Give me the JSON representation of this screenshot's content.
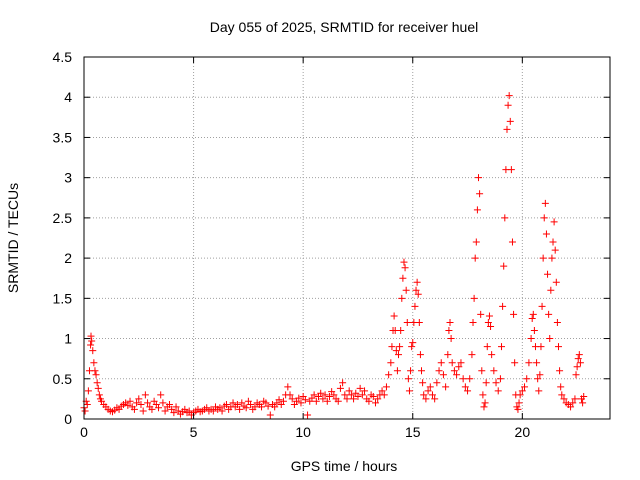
{
  "chart_data": {
    "type": "scatter",
    "title": "Day 055 of 2025, SRMTID for receiver huel",
    "xlabel": "GPS time / hours",
    "ylabel": "SRMTID / TECUs",
    "xlim": [
      0,
      24
    ],
    "ylim": [
      0,
      4.5
    ],
    "xticks": [
      0,
      5,
      10,
      15,
      20
    ],
    "xtick_labels": [
      "0",
      "5",
      "10",
      "15",
      "20"
    ],
    "yticks": [
      0,
      0.5,
      1,
      1.5,
      2,
      2.5,
      3,
      3.5,
      4,
      4.5
    ],
    "ytick_labels": [
      "0",
      "0.5",
      "1",
      "1.5",
      "2",
      "2.5",
      "3",
      "3.5",
      "4",
      "4.5"
    ],
    "grid": true,
    "marker": "+",
    "color": "#ff0000",
    "series": [
      {
        "name": "SRMTID",
        "points": [
          [
            0.0,
            0.14
          ],
          [
            0.05,
            0.1
          ],
          [
            0.1,
            0.22
          ],
          [
            0.15,
            0.18
          ],
          [
            0.2,
            0.35
          ],
          [
            0.25,
            0.6
          ],
          [
            0.3,
            0.92
          ],
          [
            0.32,
            1.03
          ],
          [
            0.35,
            0.97
          ],
          [
            0.4,
            0.85
          ],
          [
            0.45,
            0.7
          ],
          [
            0.5,
            0.6
          ],
          [
            0.55,
            0.55
          ],
          [
            0.6,
            0.45
          ],
          [
            0.65,
            0.38
          ],
          [
            0.7,
            0.3
          ],
          [
            0.75,
            0.25
          ],
          [
            0.8,
            0.22
          ],
          [
            0.9,
            0.18
          ],
          [
            1.0,
            0.15
          ],
          [
            1.1,
            0.12
          ],
          [
            1.2,
            0.1
          ],
          [
            1.3,
            0.09
          ],
          [
            1.4,
            0.11
          ],
          [
            1.5,
            0.14
          ],
          [
            1.6,
            0.12
          ],
          [
            1.7,
            0.16
          ],
          [
            1.8,
            0.18
          ],
          [
            1.9,
            0.2
          ],
          [
            2.0,
            0.17
          ],
          [
            2.1,
            0.22
          ],
          [
            2.2,
            0.15
          ],
          [
            2.3,
            0.12
          ],
          [
            2.4,
            0.2
          ],
          [
            2.5,
            0.25
          ],
          [
            2.6,
            0.18
          ],
          [
            2.7,
            0.1
          ],
          [
            2.8,
            0.3
          ],
          [
            2.9,
            0.2
          ],
          [
            3.0,
            0.15
          ],
          [
            3.1,
            0.12
          ],
          [
            3.2,
            0.22
          ],
          [
            3.3,
            0.18
          ],
          [
            3.4,
            0.14
          ],
          [
            3.5,
            0.3
          ],
          [
            3.6,
            0.2
          ],
          [
            3.7,
            0.1
          ],
          [
            3.8,
            0.15
          ],
          [
            3.9,
            0.18
          ],
          [
            4.0,
            0.12
          ],
          [
            4.1,
            0.08
          ],
          [
            4.2,
            0.15
          ],
          [
            4.3,
            0.1
          ],
          [
            4.4,
            0.06
          ],
          [
            4.5,
            0.09
          ],
          [
            4.6,
            0.12
          ],
          [
            4.7,
            0.08
          ],
          [
            4.8,
            0.1
          ],
          [
            4.9,
            0.05
          ],
          [
            5.0,
            0.08
          ],
          [
            5.1,
            0.1
          ],
          [
            5.2,
            0.12
          ],
          [
            5.3,
            0.09
          ],
          [
            5.4,
            0.1
          ],
          [
            5.5,
            0.12
          ],
          [
            5.6,
            0.14
          ],
          [
            5.7,
            0.1
          ],
          [
            5.8,
            0.12
          ],
          [
            5.9,
            0.1
          ],
          [
            6.0,
            0.15
          ],
          [
            6.1,
            0.12
          ],
          [
            6.2,
            0.14
          ],
          [
            6.3,
            0.1
          ],
          [
            6.4,
            0.16
          ],
          [
            6.5,
            0.18
          ],
          [
            6.6,
            0.12
          ],
          [
            6.7,
            0.15
          ],
          [
            6.8,
            0.2
          ],
          [
            6.9,
            0.15
          ],
          [
            7.0,
            0.18
          ],
          [
            7.1,
            0.12
          ],
          [
            7.2,
            0.2
          ],
          [
            7.3,
            0.16
          ],
          [
            7.4,
            0.14
          ],
          [
            7.5,
            0.22
          ],
          [
            7.6,
            0.18
          ],
          [
            7.7,
            0.12
          ],
          [
            7.8,
            0.15
          ],
          [
            7.9,
            0.2
          ],
          [
            8.0,
            0.18
          ],
          [
            8.1,
            0.15
          ],
          [
            8.2,
            0.22
          ],
          [
            8.3,
            0.2
          ],
          [
            8.4,
            0.16
          ],
          [
            8.5,
            0.05
          ],
          [
            8.6,
            0.18
          ],
          [
            8.7,
            0.15
          ],
          [
            8.8,
            0.2
          ],
          [
            8.9,
            0.24
          ],
          [
            9.0,
            0.18
          ],
          [
            9.1,
            0.22
          ],
          [
            9.2,
            0.3
          ],
          [
            9.3,
            0.4
          ],
          [
            9.4,
            0.3
          ],
          [
            9.5,
            0.25
          ],
          [
            9.6,
            0.18
          ],
          [
            9.7,
            0.22
          ],
          [
            9.8,
            0.26
          ],
          [
            9.9,
            0.2
          ],
          [
            10.0,
            0.28
          ],
          [
            10.1,
            0.24
          ],
          [
            10.2,
            0.05
          ],
          [
            10.3,
            0.22
          ],
          [
            10.4,
            0.26
          ],
          [
            10.5,
            0.3
          ],
          [
            10.6,
            0.22
          ],
          [
            10.7,
            0.28
          ],
          [
            10.8,
            0.32
          ],
          [
            10.9,
            0.25
          ],
          [
            11.0,
            0.3
          ],
          [
            11.1,
            0.22
          ],
          [
            11.2,
            0.28
          ],
          [
            11.3,
            0.34
          ],
          [
            11.4,
            0.3
          ],
          [
            11.5,
            0.25
          ],
          [
            11.6,
            0.22
          ],
          [
            11.7,
            0.38
          ],
          [
            11.8,
            0.45
          ],
          [
            11.9,
            0.3
          ],
          [
            12.0,
            0.25
          ],
          [
            12.1,
            0.35
          ],
          [
            12.2,
            0.3
          ],
          [
            12.3,
            0.25
          ],
          [
            12.4,
            0.32
          ],
          [
            12.5,
            0.28
          ],
          [
            12.6,
            0.38
          ],
          [
            12.7,
            0.3
          ],
          [
            12.8,
            0.35
          ],
          [
            12.9,
            0.25
          ],
          [
            13.0,
            0.22
          ],
          [
            13.1,
            0.3
          ],
          [
            13.2,
            0.28
          ],
          [
            13.3,
            0.2
          ],
          [
            13.4,
            0.25
          ],
          [
            13.5,
            0.3
          ],
          [
            13.6,
            0.35
          ],
          [
            13.7,
            0.3
          ],
          [
            13.8,
            0.4
          ],
          [
            13.9,
            0.55
          ],
          [
            14.0,
            0.7
          ],
          [
            14.05,
            0.9
          ],
          [
            14.1,
            1.1
          ],
          [
            14.15,
            1.28
          ],
          [
            14.2,
            1.1
          ],
          [
            14.25,
            0.85
          ],
          [
            14.3,
            0.6
          ],
          [
            14.35,
            0.8
          ],
          [
            14.4,
            0.9
          ],
          [
            14.45,
            1.1
          ],
          [
            14.5,
            1.5
          ],
          [
            14.55,
            1.75
          ],
          [
            14.6,
            1.95
          ],
          [
            14.65,
            1.88
          ],
          [
            14.7,
            1.6
          ],
          [
            14.75,
            1.2
          ],
          [
            14.8,
            0.5
          ],
          [
            14.85,
            0.35
          ],
          [
            14.9,
            0.6
          ],
          [
            14.95,
            0.9
          ],
          [
            15.0,
            0.95
          ],
          [
            15.05,
            1.2
          ],
          [
            15.1,
            1.4
          ],
          [
            15.15,
            1.6
          ],
          [
            15.2,
            1.7
          ],
          [
            15.25,
            1.55
          ],
          [
            15.3,
            1.2
          ],
          [
            15.35,
            0.8
          ],
          [
            15.4,
            0.6
          ],
          [
            15.45,
            0.45
          ],
          [
            15.5,
            0.3
          ],
          [
            15.6,
            0.25
          ],
          [
            15.7,
            0.35
          ],
          [
            15.8,
            0.4
          ],
          [
            15.9,
            0.3
          ],
          [
            16.0,
            0.25
          ],
          [
            16.1,
            0.45
          ],
          [
            16.2,
            0.6
          ],
          [
            16.3,
            0.7
          ],
          [
            16.4,
            0.55
          ],
          [
            16.5,
            0.4
          ],
          [
            16.6,
            0.8
          ],
          [
            16.65,
            1.1
          ],
          [
            16.7,
            1.2
          ],
          [
            16.75,
            1.0
          ],
          [
            16.8,
            0.7
          ],
          [
            16.9,
            0.6
          ],
          [
            17.0,
            0.55
          ],
          [
            17.1,
            0.65
          ],
          [
            17.2,
            0.7
          ],
          [
            17.3,
            0.5
          ],
          [
            17.4,
            0.4
          ],
          [
            17.5,
            0.35
          ],
          [
            17.6,
            0.5
          ],
          [
            17.7,
            0.8
          ],
          [
            17.75,
            1.2
          ],
          [
            17.8,
            1.5
          ],
          [
            17.85,
            2.0
          ],
          [
            17.9,
            2.2
          ],
          [
            17.95,
            2.6
          ],
          [
            18.0,
            3.0
          ],
          [
            18.05,
            2.8
          ],
          [
            18.1,
            1.3
          ],
          [
            18.15,
            0.6
          ],
          [
            18.2,
            0.3
          ],
          [
            18.25,
            0.15
          ],
          [
            18.3,
            0.2
          ],
          [
            18.35,
            0.45
          ],
          [
            18.4,
            0.9
          ],
          [
            18.45,
            1.2
          ],
          [
            18.5,
            1.28
          ],
          [
            18.55,
            1.15
          ],
          [
            18.6,
            0.8
          ],
          [
            18.7,
            0.6
          ],
          [
            18.8,
            0.45
          ],
          [
            18.9,
            0.35
          ],
          [
            19.0,
            0.5
          ],
          [
            19.05,
            0.9
          ],
          [
            19.1,
            1.4
          ],
          [
            19.15,
            1.9
          ],
          [
            19.2,
            2.5
          ],
          [
            19.25,
            3.1
          ],
          [
            19.3,
            3.6
          ],
          [
            19.35,
            3.9
          ],
          [
            19.4,
            4.02
          ],
          [
            19.45,
            3.7
          ],
          [
            19.5,
            3.1
          ],
          [
            19.55,
            2.2
          ],
          [
            19.6,
            1.3
          ],
          [
            19.65,
            0.7
          ],
          [
            19.7,
            0.3
          ],
          [
            19.75,
            0.15
          ],
          [
            19.8,
            0.12
          ],
          [
            19.85,
            0.2
          ],
          [
            19.9,
            0.3
          ],
          [
            20.0,
            0.35
          ],
          [
            20.1,
            0.4
          ],
          [
            20.2,
            0.5
          ],
          [
            20.3,
            0.7
          ],
          [
            20.4,
            1.0
          ],
          [
            20.45,
            1.25
          ],
          [
            20.5,
            1.3
          ],
          [
            20.55,
            1.1
          ],
          [
            20.6,
            0.9
          ],
          [
            20.65,
            0.7
          ],
          [
            20.7,
            0.5
          ],
          [
            20.75,
            0.35
          ],
          [
            20.8,
            0.55
          ],
          [
            20.85,
            0.9
          ],
          [
            20.9,
            1.4
          ],
          [
            20.95,
            2.0
          ],
          [
            21.0,
            2.5
          ],
          [
            21.05,
            2.68
          ],
          [
            21.1,
            2.3
          ],
          [
            21.15,
            1.8
          ],
          [
            21.2,
            1.3
          ],
          [
            21.25,
            1.0
          ],
          [
            21.3,
            1.6
          ],
          [
            21.35,
            2.0
          ],
          [
            21.4,
            2.2
          ],
          [
            21.45,
            2.45
          ],
          [
            21.5,
            2.1
          ],
          [
            21.55,
            1.7
          ],
          [
            21.6,
            1.2
          ],
          [
            21.65,
            0.9
          ],
          [
            21.7,
            0.6
          ],
          [
            21.75,
            0.4
          ],
          [
            21.8,
            0.3
          ],
          [
            21.9,
            0.25
          ],
          [
            22.0,
            0.2
          ],
          [
            22.1,
            0.18
          ],
          [
            22.2,
            0.15
          ],
          [
            22.3,
            0.2
          ],
          [
            22.4,
            0.25
          ],
          [
            22.45,
            0.55
          ],
          [
            22.5,
            0.65
          ],
          [
            22.55,
            0.75
          ],
          [
            22.6,
            0.8
          ],
          [
            22.65,
            0.7
          ],
          [
            22.7,
            0.25
          ],
          [
            22.75,
            0.2
          ],
          [
            22.8,
            0.28
          ]
        ]
      }
    ]
  }
}
